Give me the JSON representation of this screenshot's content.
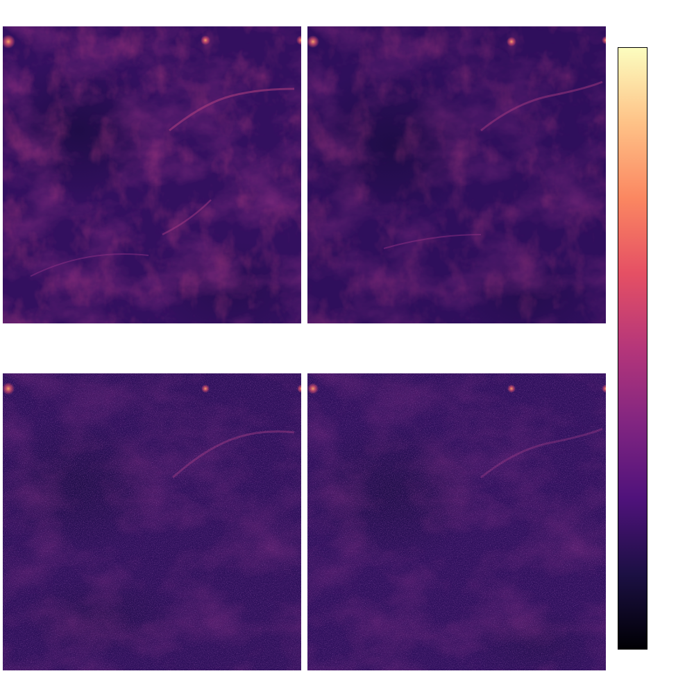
{
  "figure": {
    "colormap": "magma",
    "colormap_stops": [
      "#000004",
      "#1c1044",
      "#4f127b",
      "#812581",
      "#b5367a",
      "#e55064",
      "#fb8761",
      "#fec287",
      "#fcfdbf"
    ],
    "panels": [
      {
        "id": "top-left",
        "texture": "smooth-filaments"
      },
      {
        "id": "top-right",
        "texture": "smooth-filaments"
      },
      {
        "id": "bottom-left",
        "texture": "noisy-filaments"
      },
      {
        "id": "bottom-right",
        "texture": "noisy-filaments"
      }
    ]
  }
}
